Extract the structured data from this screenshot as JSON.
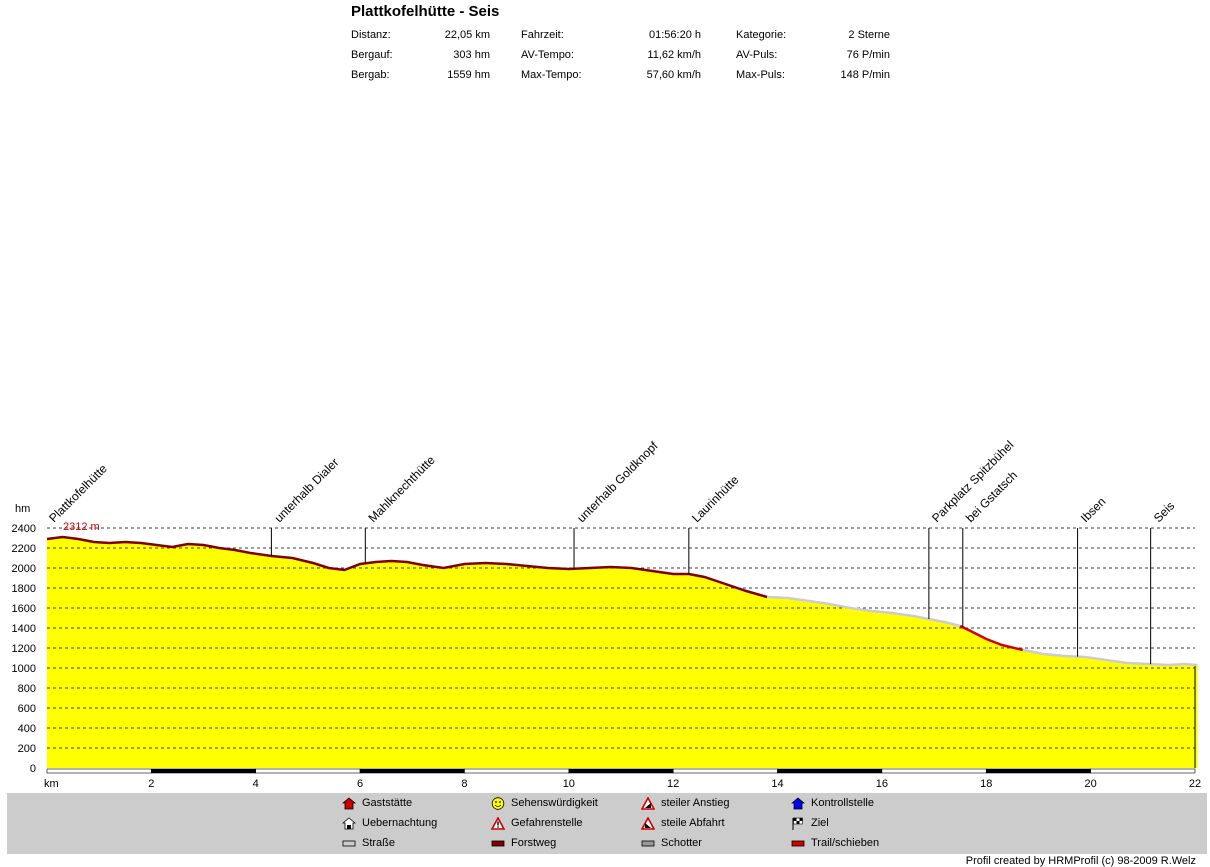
{
  "header": {
    "title": "Plattkofelhütte - Seis",
    "stats": [
      {
        "label": "Distanz:",
        "value": "22,05 km"
      },
      {
        "label": "Bergauf:",
        "value": "303 hm"
      },
      {
        "label": "Bergab:",
        "value": "1559 hm"
      },
      {
        "label": "Fahrzeit:",
        "value": "01:56:20 h"
      },
      {
        "label": "AV-Tempo:",
        "value": "11,62 km/h"
      },
      {
        "label": "Max-Tempo:",
        "value": "57,60 km/h"
      },
      {
        "label": "Kategorie:",
        "value": "2 Sterne"
      },
      {
        "label": "AV-Puls:",
        "value": "76 P/min"
      },
      {
        "label": "Max-Puls:",
        "value": "148 P/min"
      }
    ]
  },
  "legend": [
    {
      "icon": "gaststaette-icon",
      "label": "Gaststätte"
    },
    {
      "icon": "smiley-icon",
      "label": "Sehenswürdigkeit"
    },
    {
      "icon": "steep-ascent-icon",
      "label": "steiler Anstieg"
    },
    {
      "icon": "checkpoint-icon",
      "label": "Kontrollstelle"
    },
    {
      "icon": "lodging-icon",
      "label": "Uebernachtung"
    },
    {
      "icon": "danger-icon",
      "label": "Gefahrenstelle"
    },
    {
      "icon": "steep-descent-icon",
      "label": "steile Abfahrt"
    },
    {
      "icon": "finish-flag-icon",
      "label": "Ziel"
    },
    {
      "icon": "road-swatch-icon",
      "label": "Straße"
    },
    {
      "icon": "forest-road-swatch-icon",
      "label": "Forstweg"
    },
    {
      "icon": "gravel-swatch-icon",
      "label": "Schotter"
    },
    {
      "icon": "trail-swatch-icon",
      "label": "Trail/schieben"
    }
  ],
  "colors": {
    "fill": "#ffff00",
    "forstweg": "#800000",
    "trail": "#d00000",
    "strasse": "#cccccc",
    "grid": "#000000",
    "max_label": "#cc0000"
  },
  "credit": "Profil created by HRMProfil (c) 98-2009 R.Welz",
  "chart_data": {
    "type": "area",
    "xlabel": "km",
    "ylabel": "hm",
    "xlim": [
      0,
      22
    ],
    "ylim": [
      0,
      2400
    ],
    "x_ticks": [
      0,
      2,
      4,
      6,
      8,
      10,
      12,
      14,
      16,
      18,
      20,
      22
    ],
    "x_tick_labels": [
      "km",
      "2",
      "4",
      "6",
      "8",
      "10",
      "12",
      "14",
      "16",
      "18",
      "20",
      "22"
    ],
    "y_ticks": [
      0,
      200,
      400,
      600,
      800,
      1000,
      1200,
      1400,
      1600,
      1800,
      2000,
      2200,
      2400
    ],
    "grid": true,
    "max_annotation": "2312 m",
    "series": [
      {
        "x": [
          0,
          0.3,
          0.6,
          0.9,
          1.2,
          1.5,
          1.8,
          2.1,
          2.4,
          2.7,
          3.0,
          3.3,
          3.6,
          3.9,
          4.3,
          4.7,
          5.1,
          5.4,
          5.7,
          6.0,
          6.3,
          6.6,
          6.9,
          7.2,
          7.6,
          8.0,
          8.4,
          8.8,
          9.2,
          9.6,
          10.0,
          10.4,
          10.8,
          11.2,
          11.6,
          12.0,
          12.3,
          12.6,
          13.0,
          13.4,
          13.8,
          14.2,
          14.6,
          15.0,
          15.4,
          15.8,
          16.2,
          16.6,
          16.9,
          17.2,
          17.5,
          17.7,
          18.0,
          18.3,
          18.7,
          19.1,
          19.5,
          19.9,
          20.3,
          20.7,
          21.1,
          21.5,
          21.8,
          22.05
        ],
        "y": [
          2290,
          2310,
          2290,
          2260,
          2250,
          2260,
          2250,
          2230,
          2210,
          2240,
          2230,
          2200,
          2180,
          2150,
          2120,
          2100,
          2050,
          2000,
          1980,
          2040,
          2060,
          2070,
          2060,
          2030,
          2000,
          2040,
          2050,
          2040,
          2020,
          2000,
          1990,
          2000,
          2010,
          2000,
          1970,
          1940,
          1940,
          1910,
          1840,
          1770,
          1710,
          1700,
          1670,
          1640,
          1600,
          1570,
          1550,
          1520,
          1490,
          1460,
          1420,
          1370,
          1290,
          1230,
          1180,
          1140,
          1120,
          1110,
          1080,
          1050,
          1040,
          1030,
          1040,
          1030
        ]
      }
    ],
    "surfaces": [
      {
        "label": "Forstweg",
        "from": 0,
        "to": 13.8
      },
      {
        "label": "Straße",
        "from": 13.8,
        "to": 17.5
      },
      {
        "label": "Trail/schieben",
        "from": 17.5,
        "to": 18.7
      },
      {
        "label": "Straße",
        "from": 18.7,
        "to": 22.05
      }
    ],
    "waypoints": [
      {
        "label": "Plattkofelhütte",
        "x": 0.0
      },
      {
        "label": "unterhalb Dialer",
        "x": 4.3
      },
      {
        "label": "Mahlknechthütte",
        "x": 6.1
      },
      {
        "label": "unterhalb Goldknopf",
        "x": 10.1
      },
      {
        "label": "Laurinhütte",
        "x": 12.3
      },
      {
        "label": "Parkplatz Spitzbühel",
        "x": 16.9
      },
      {
        "label": "bei Gstatsch",
        "x": 17.55
      },
      {
        "label": "Ibsen",
        "x": 19.75
      },
      {
        "label": "Seis",
        "x": 21.15
      }
    ]
  }
}
